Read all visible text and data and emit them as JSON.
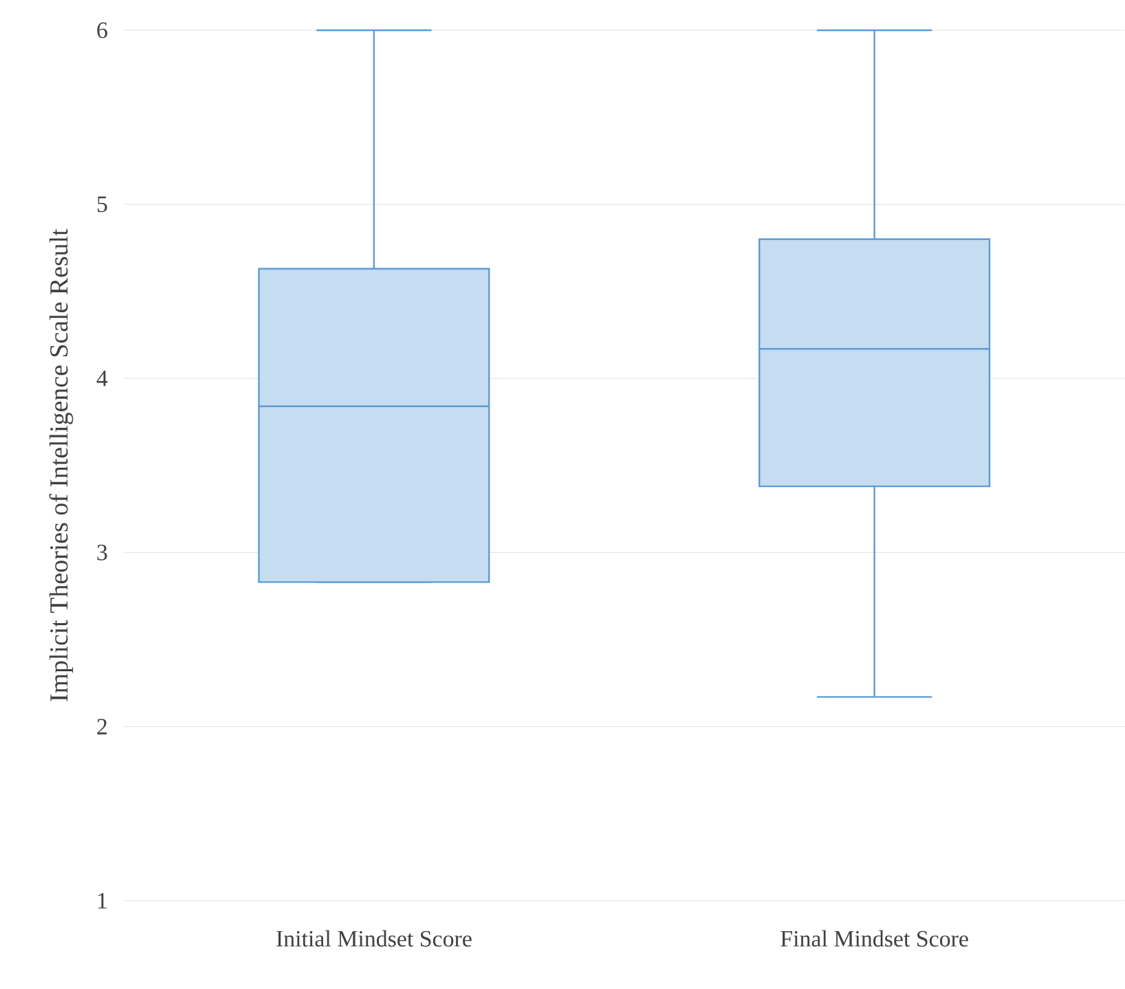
{
  "chart_data": {
    "type": "box",
    "ylabel": "Implicit Theories of Intelligence Scale Result",
    "categories": [
      "Initial Mindset Score",
      "Final Mindset Score"
    ],
    "series": [
      {
        "color": "#5b9bd5",
        "boxes": [
          {
            "low": 2.83,
            "q1": 2.83,
            "median": 3.84,
            "q3": 4.63,
            "high": 6
          },
          {
            "low": 2.17,
            "q1": 3.38,
            "median": 4.17,
            "q3": 4.8,
            "high": 6
          }
        ]
      }
    ],
    "ylim": [
      1,
      6
    ],
    "yticks": [
      1,
      2,
      3,
      4,
      5,
      6
    ],
    "grid": "y"
  }
}
